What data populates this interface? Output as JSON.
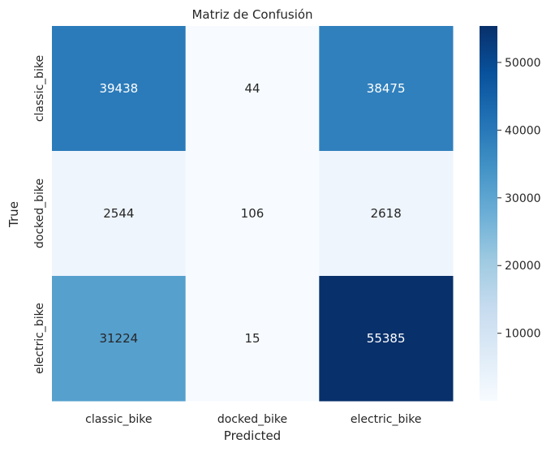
{
  "chart_data": {
    "type": "heatmap",
    "title": "Matriz de Confusión",
    "xlabel": "Predicted",
    "ylabel": "True",
    "x_categories": [
      "classic_bike",
      "docked_bike",
      "electric_bike"
    ],
    "y_categories": [
      "classic_bike",
      "docked_bike",
      "electric_bike"
    ],
    "values": [
      [
        39438,
        44,
        38475
      ],
      [
        2544,
        106,
        2618
      ],
      [
        31224,
        15,
        55385
      ]
    ],
    "colormap": "Blues",
    "colorbar_ticks": [
      10000,
      20000,
      30000,
      40000,
      50000
    ],
    "colorbar_tick_labels": [
      "10000",
      "20000",
      "30000",
      "40000",
      "50000"
    ],
    "colorbar_range": [
      15,
      55385
    ],
    "grid": false
  }
}
